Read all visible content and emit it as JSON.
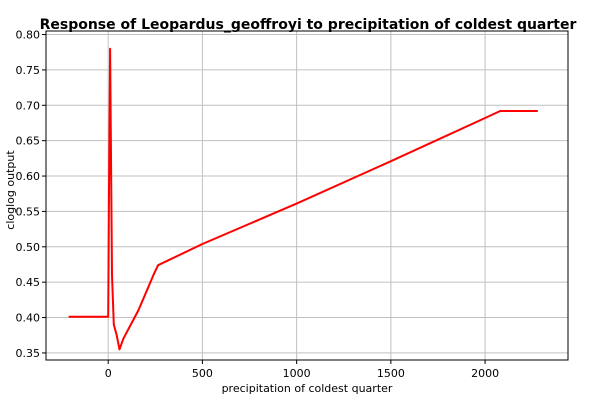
{
  "chart_data": {
    "type": "line",
    "title": "Response of Leopardus_geoffroyi to precipitation of coldest quarter",
    "xlabel": "precipitation of coldest quarter",
    "ylabel": "cloglog output",
    "xlim": [
      -330,
      2440
    ],
    "ylim": [
      0.34,
      0.805
    ],
    "xticks": [
      0,
      500,
      1000,
      1500,
      2000
    ],
    "yticks": [
      0.35,
      0.4,
      0.45,
      0.5,
      0.55,
      0.6,
      0.65,
      0.7,
      0.75,
      0.8
    ],
    "grid": true,
    "line_color": "#ff0000",
    "series": [
      {
        "x": [
          -210,
          -100,
          0,
          5,
          10,
          20,
          30,
          45,
          60,
          80,
          120,
          160,
          200,
          240,
          265,
          500,
          1000,
          1500,
          2000,
          2080,
          2280
        ],
        "values": [
          0.401,
          0.401,
          0.401,
          0.6,
          0.78,
          0.46,
          0.39,
          0.375,
          0.355,
          0.37,
          0.39,
          0.41,
          0.435,
          0.46,
          0.474,
          0.504,
          0.561,
          0.621,
          0.682,
          0.692,
          0.692
        ]
      }
    ]
  }
}
